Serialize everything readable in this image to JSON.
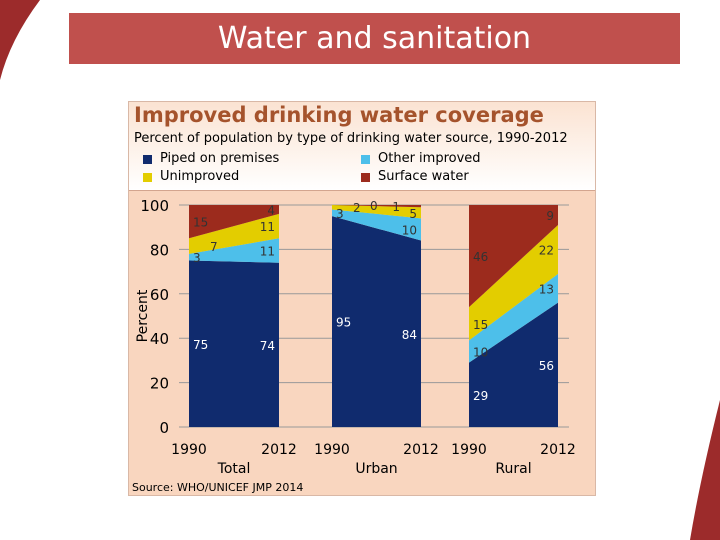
{
  "slide_title": "Water and sanitation",
  "chart_data": {
    "type": "stacked area",
    "title": "Improved drinking water coverage",
    "subtitle": "Percent of population by type of drinking water source, 1990-2012",
    "ylabel": "Percent",
    "ylim": [
      0,
      100
    ],
    "yticks": [
      0,
      20,
      40,
      60,
      80,
      100
    ],
    "legend": [
      {
        "name": "Piped on premises",
        "color": "#102b6e"
      },
      {
        "name": "Other improved",
        "color": "#4dbfea"
      },
      {
        "name": "Unimproved",
        "color": "#e3cd00"
      },
      {
        "name": "Surface water",
        "color": "#9c2b1d"
      }
    ],
    "groups": [
      {
        "name": "Total",
        "x": [
          "1990",
          "2012"
        ],
        "values": {
          "piped": [
            75,
            74
          ],
          "other": [
            3,
            11
          ],
          "unimproved": [
            7,
            11
          ],
          "surface": [
            15,
            4
          ]
        }
      },
      {
        "name": "Urban",
        "x": [
          "1990",
          "2012"
        ],
        "values": {
          "piped": [
            95,
            84
          ],
          "other": [
            3,
            10
          ],
          "unimproved": [
            2,
            5
          ],
          "surface": [
            0,
            1
          ]
        }
      },
      {
        "name": "Rural",
        "x": [
          "1990",
          "2012"
        ],
        "values": {
          "piped": [
            29,
            56
          ],
          "other": [
            10,
            13
          ],
          "unimproved": [
            15,
            22
          ],
          "surface": [
            46,
            9
          ]
        }
      }
    ],
    "source": "Source:  WHO/UNICEF JMP 2014"
  }
}
